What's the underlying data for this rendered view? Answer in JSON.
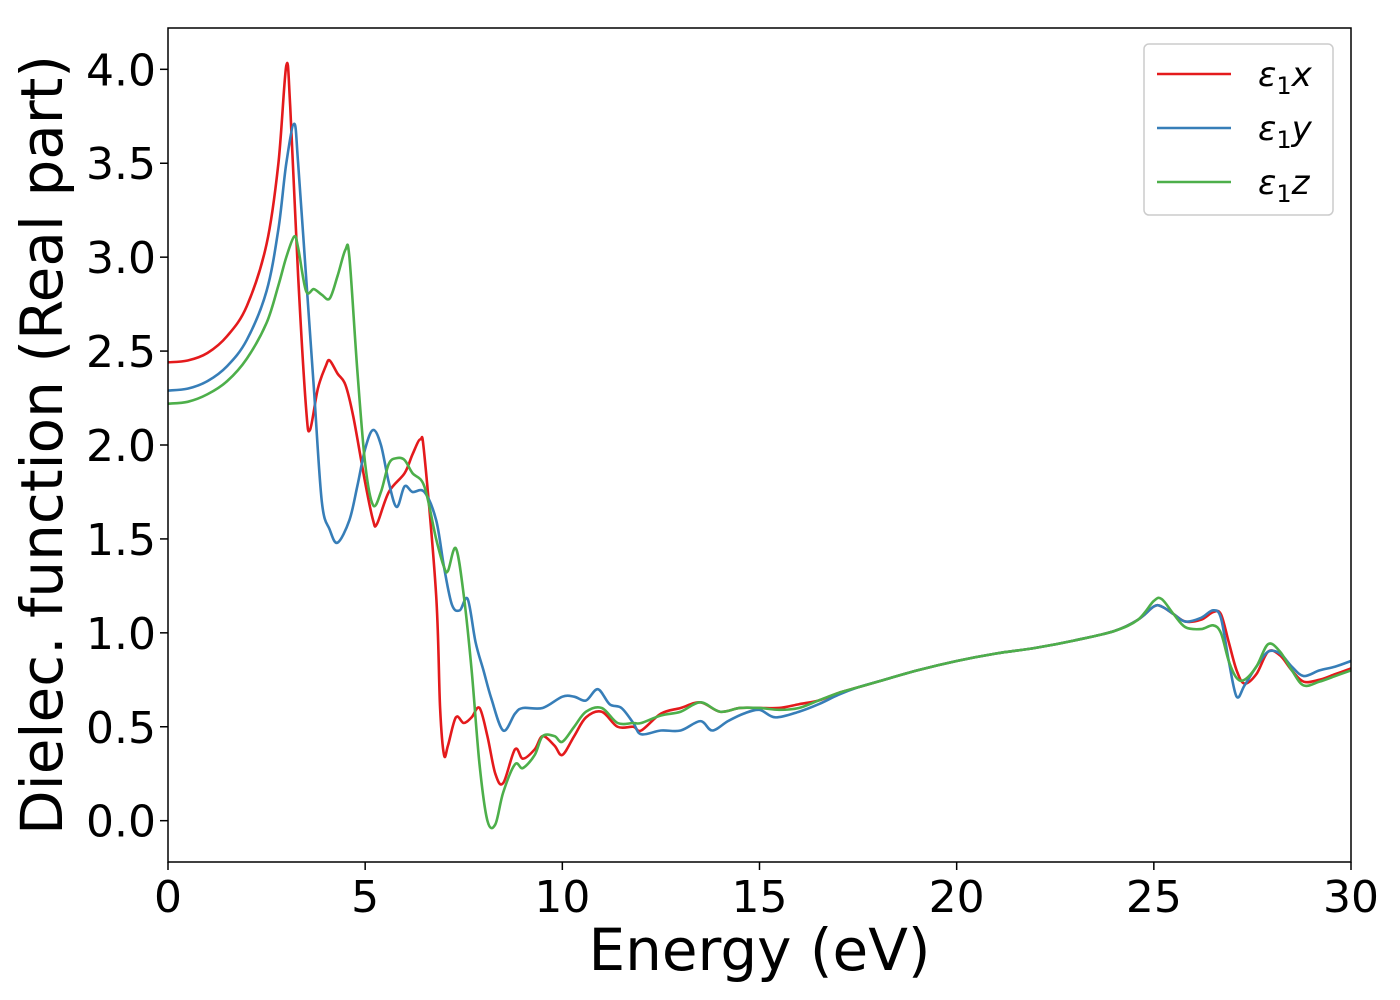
{
  "chart_data": {
    "type": "line",
    "xlabel": "Energy (eV)",
    "ylabel": "Dielec. function (Real part)",
    "xlim": [
      0,
      30
    ],
    "ylim": [
      -0.22,
      4.22
    ],
    "xticks": [
      0,
      5,
      10,
      15,
      20,
      25,
      30
    ],
    "xtick_labels": [
      "0",
      "5",
      "10",
      "15",
      "20",
      "25",
      "30"
    ],
    "yticks": [
      0.0,
      0.5,
      1.0,
      1.5,
      2.0,
      2.5,
      3.0,
      3.5,
      4.0
    ],
    "ytick_labels": [
      "0.0",
      "0.5",
      "1.0",
      "1.5",
      "2.0",
      "2.5",
      "3.0",
      "3.5",
      "4.0"
    ],
    "grid": false,
    "legend_position": "top-right",
    "series": [
      {
        "name": "ε1x",
        "legend": {
          "base": "ε",
          "sub": "1",
          "var": "x"
        },
        "color": "#e41a1c",
        "points": [
          [
            0,
            2.44
          ],
          [
            0.5,
            2.45
          ],
          [
            1.0,
            2.49
          ],
          [
            1.5,
            2.58
          ],
          [
            2.0,
            2.74
          ],
          [
            2.5,
            3.07
          ],
          [
            2.8,
            3.5
          ],
          [
            3.0,
            4.02
          ],
          [
            3.1,
            3.8
          ],
          [
            3.3,
            2.9
          ],
          [
            3.5,
            2.2
          ],
          [
            3.6,
            2.08
          ],
          [
            3.8,
            2.3
          ],
          [
            4.0,
            2.42
          ],
          [
            4.1,
            2.45
          ],
          [
            4.3,
            2.38
          ],
          [
            4.5,
            2.32
          ],
          [
            4.7,
            2.15
          ],
          [
            5.0,
            1.8
          ],
          [
            5.2,
            1.6
          ],
          [
            5.3,
            1.58
          ],
          [
            5.6,
            1.75
          ],
          [
            6.0,
            1.85
          ],
          [
            6.2,
            1.95
          ],
          [
            6.4,
            2.03
          ],
          [
            6.5,
            1.95
          ],
          [
            6.8,
            1.2
          ],
          [
            6.9,
            0.6
          ],
          [
            7.0,
            0.35
          ],
          [
            7.1,
            0.4
          ],
          [
            7.3,
            0.55
          ],
          [
            7.5,
            0.52
          ],
          [
            7.7,
            0.55
          ],
          [
            7.9,
            0.6
          ],
          [
            8.1,
            0.45
          ],
          [
            8.3,
            0.25
          ],
          [
            8.5,
            0.2
          ],
          [
            8.8,
            0.38
          ],
          [
            9.0,
            0.33
          ],
          [
            9.3,
            0.38
          ],
          [
            9.5,
            0.45
          ],
          [
            9.8,
            0.4
          ],
          [
            10.0,
            0.35
          ],
          [
            10.3,
            0.45
          ],
          [
            10.6,
            0.55
          ],
          [
            11.0,
            0.58
          ],
          [
            11.4,
            0.5
          ],
          [
            11.8,
            0.5
          ],
          [
            12.0,
            0.48
          ],
          [
            12.5,
            0.57
          ],
          [
            13.0,
            0.6
          ],
          [
            13.5,
            0.63
          ],
          [
            14.0,
            0.58
          ],
          [
            14.5,
            0.6
          ],
          [
            15.0,
            0.6
          ],
          [
            15.5,
            0.6
          ],
          [
            16.0,
            0.62
          ],
          [
            16.5,
            0.64
          ],
          [
            17.0,
            0.68
          ],
          [
            17.5,
            0.71
          ],
          [
            18.0,
            0.74
          ],
          [
            19.0,
            0.8
          ],
          [
            20.0,
            0.85
          ],
          [
            21.0,
            0.89
          ],
          [
            22.0,
            0.92
          ],
          [
            23.0,
            0.96
          ],
          [
            24.0,
            1.01
          ],
          [
            24.6,
            1.07
          ],
          [
            25.0,
            1.14
          ],
          [
            25.2,
            1.14
          ],
          [
            25.5,
            1.1
          ],
          [
            25.8,
            1.06
          ],
          [
            26.2,
            1.07
          ],
          [
            26.5,
            1.11
          ],
          [
            26.7,
            1.1
          ],
          [
            26.9,
            0.95
          ],
          [
            27.1,
            0.8
          ],
          [
            27.3,
            0.73
          ],
          [
            27.6,
            0.78
          ],
          [
            27.9,
            0.9
          ],
          [
            28.2,
            0.88
          ],
          [
            28.5,
            0.8
          ],
          [
            28.8,
            0.74
          ],
          [
            29.2,
            0.75
          ],
          [
            29.6,
            0.78
          ],
          [
            30.0,
            0.81
          ]
        ]
      },
      {
        "name": "ε1y",
        "legend": {
          "base": "ε",
          "sub": "1",
          "var": "y"
        },
        "color": "#377eb8",
        "points": [
          [
            0,
            2.29
          ],
          [
            0.5,
            2.3
          ],
          [
            1.0,
            2.34
          ],
          [
            1.5,
            2.42
          ],
          [
            2.0,
            2.56
          ],
          [
            2.5,
            2.82
          ],
          [
            2.8,
            3.15
          ],
          [
            3.0,
            3.5
          ],
          [
            3.2,
            3.71
          ],
          [
            3.3,
            3.5
          ],
          [
            3.5,
            2.9
          ],
          [
            3.7,
            2.3
          ],
          [
            3.9,
            1.7
          ],
          [
            4.1,
            1.55
          ],
          [
            4.3,
            1.48
          ],
          [
            4.6,
            1.6
          ],
          [
            4.8,
            1.78
          ],
          [
            5.0,
            1.98
          ],
          [
            5.2,
            2.08
          ],
          [
            5.4,
            2.0
          ],
          [
            5.6,
            1.8
          ],
          [
            5.8,
            1.67
          ],
          [
            6.0,
            1.78
          ],
          [
            6.2,
            1.75
          ],
          [
            6.5,
            1.75
          ],
          [
            6.8,
            1.6
          ],
          [
            7.0,
            1.35
          ],
          [
            7.2,
            1.15
          ],
          [
            7.4,
            1.12
          ],
          [
            7.6,
            1.18
          ],
          [
            7.8,
            0.95
          ],
          [
            8.0,
            0.8
          ],
          [
            8.2,
            0.65
          ],
          [
            8.5,
            0.48
          ],
          [
            8.8,
            0.57
          ],
          [
            9.0,
            0.6
          ],
          [
            9.5,
            0.6
          ],
          [
            10.0,
            0.66
          ],
          [
            10.3,
            0.66
          ],
          [
            10.6,
            0.64
          ],
          [
            10.9,
            0.7
          ],
          [
            11.2,
            0.62
          ],
          [
            11.5,
            0.6
          ],
          [
            11.8,
            0.52
          ],
          [
            12.0,
            0.46
          ],
          [
            12.5,
            0.48
          ],
          [
            13.0,
            0.48
          ],
          [
            13.5,
            0.53
          ],
          [
            13.8,
            0.48
          ],
          [
            14.2,
            0.53
          ],
          [
            14.6,
            0.57
          ],
          [
            15.0,
            0.59
          ],
          [
            15.4,
            0.55
          ],
          [
            16.0,
            0.58
          ],
          [
            16.5,
            0.62
          ],
          [
            17.0,
            0.67
          ],
          [
            17.5,
            0.71
          ],
          [
            18.0,
            0.74
          ],
          [
            19.0,
            0.8
          ],
          [
            20.0,
            0.85
          ],
          [
            21.0,
            0.89
          ],
          [
            22.0,
            0.92
          ],
          [
            23.0,
            0.96
          ],
          [
            24.0,
            1.01
          ],
          [
            24.6,
            1.07
          ],
          [
            25.0,
            1.14
          ],
          [
            25.2,
            1.14
          ],
          [
            25.5,
            1.1
          ],
          [
            25.8,
            1.06
          ],
          [
            26.2,
            1.08
          ],
          [
            26.5,
            1.12
          ],
          [
            26.7,
            1.08
          ],
          [
            26.9,
            0.85
          ],
          [
            27.1,
            0.66
          ],
          [
            27.3,
            0.72
          ],
          [
            27.6,
            0.82
          ],
          [
            27.9,
            0.9
          ],
          [
            28.2,
            0.89
          ],
          [
            28.5,
            0.82
          ],
          [
            28.8,
            0.77
          ],
          [
            29.2,
            0.8
          ],
          [
            29.6,
            0.82
          ],
          [
            30.0,
            0.85
          ]
        ]
      },
      {
        "name": "ε1z",
        "legend": {
          "base": "ε",
          "sub": "1",
          "var": "z"
        },
        "color": "#4daf4a",
        "points": [
          [
            0,
            2.22
          ],
          [
            0.5,
            2.23
          ],
          [
            1.0,
            2.27
          ],
          [
            1.5,
            2.34
          ],
          [
            2.0,
            2.46
          ],
          [
            2.5,
            2.65
          ],
          [
            2.8,
            2.85
          ],
          [
            3.0,
            3.0
          ],
          [
            3.2,
            3.11
          ],
          [
            3.3,
            3.05
          ],
          [
            3.5,
            2.82
          ],
          [
            3.7,
            2.83
          ],
          [
            3.9,
            2.8
          ],
          [
            4.1,
            2.78
          ],
          [
            4.3,
            2.9
          ],
          [
            4.5,
            3.04
          ],
          [
            4.6,
            3.0
          ],
          [
            4.8,
            2.4
          ],
          [
            5.0,
            1.9
          ],
          [
            5.2,
            1.68
          ],
          [
            5.4,
            1.75
          ],
          [
            5.6,
            1.9
          ],
          [
            5.8,
            1.93
          ],
          [
            6.0,
            1.92
          ],
          [
            6.2,
            1.85
          ],
          [
            6.5,
            1.78
          ],
          [
            6.8,
            1.5
          ],
          [
            7.0,
            1.35
          ],
          [
            7.1,
            1.33
          ],
          [
            7.3,
            1.45
          ],
          [
            7.5,
            1.2
          ],
          [
            7.7,
            0.8
          ],
          [
            7.9,
            0.3
          ],
          [
            8.1,
            0.0
          ],
          [
            8.3,
            -0.02
          ],
          [
            8.5,
            0.15
          ],
          [
            8.8,
            0.3
          ],
          [
            9.0,
            0.28
          ],
          [
            9.3,
            0.35
          ],
          [
            9.5,
            0.45
          ],
          [
            9.8,
            0.45
          ],
          [
            10.0,
            0.42
          ],
          [
            10.3,
            0.5
          ],
          [
            10.6,
            0.58
          ],
          [
            11.0,
            0.6
          ],
          [
            11.4,
            0.52
          ],
          [
            11.8,
            0.52
          ],
          [
            12.0,
            0.52
          ],
          [
            12.5,
            0.56
          ],
          [
            13.0,
            0.58
          ],
          [
            13.5,
            0.63
          ],
          [
            14.0,
            0.58
          ],
          [
            14.5,
            0.6
          ],
          [
            15.0,
            0.6
          ],
          [
            15.5,
            0.59
          ],
          [
            16.0,
            0.6
          ],
          [
            16.5,
            0.64
          ],
          [
            17.0,
            0.68
          ],
          [
            17.5,
            0.71
          ],
          [
            18.0,
            0.74
          ],
          [
            19.0,
            0.8
          ],
          [
            20.0,
            0.85
          ],
          [
            21.0,
            0.89
          ],
          [
            22.0,
            0.92
          ],
          [
            23.0,
            0.96
          ],
          [
            24.0,
            1.01
          ],
          [
            24.6,
            1.07
          ],
          [
            25.0,
            1.17
          ],
          [
            25.2,
            1.18
          ],
          [
            25.5,
            1.1
          ],
          [
            25.8,
            1.03
          ],
          [
            26.2,
            1.02
          ],
          [
            26.5,
            1.04
          ],
          [
            26.7,
            1.0
          ],
          [
            26.9,
            0.85
          ],
          [
            27.1,
            0.76
          ],
          [
            27.3,
            0.75
          ],
          [
            27.6,
            0.82
          ],
          [
            27.9,
            0.94
          ],
          [
            28.2,
            0.9
          ],
          [
            28.5,
            0.8
          ],
          [
            28.8,
            0.72
          ],
          [
            29.2,
            0.74
          ],
          [
            29.6,
            0.77
          ],
          [
            30.0,
            0.8
          ]
        ]
      }
    ]
  }
}
